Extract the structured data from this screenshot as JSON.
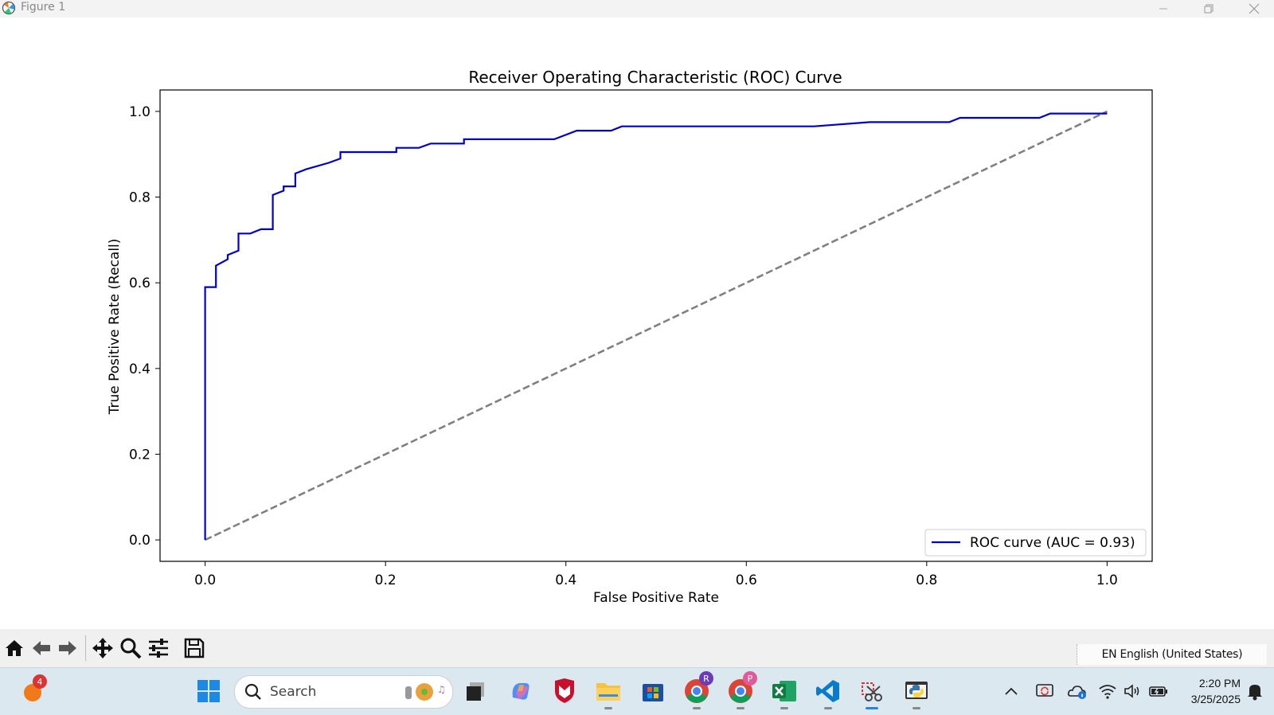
{
  "window": {
    "title": "Figure 1"
  },
  "chart_data": {
    "type": "line",
    "title": "Receiver Operating Characteristic (ROC) Curve",
    "xlabel": "False Positive Rate",
    "ylabel": "True Positive Rate (Recall)",
    "xlim": [
      -0.05,
      1.05
    ],
    "ylim": [
      -0.05,
      1.05
    ],
    "xticks": [
      "0.0",
      "0.2",
      "0.4",
      "0.6",
      "0.8",
      "1.0"
    ],
    "yticks": [
      "0.0",
      "0.2",
      "0.4",
      "0.6",
      "0.8",
      "1.0"
    ],
    "grid": false,
    "legend_position": "lower-right",
    "series": [
      {
        "name": "ROC curve (AUC = 0.93)",
        "color": "#0000cd",
        "style": "solid",
        "x": [
          0.0,
          0.0,
          0.012,
          0.012,
          0.025,
          0.025,
          0.037,
          0.037,
          0.05,
          0.062,
          0.075,
          0.075,
          0.087,
          0.087,
          0.1,
          0.1,
          0.112,
          0.137,
          0.15,
          0.15,
          0.212,
          0.212,
          0.237,
          0.25,
          0.287,
          0.287,
          0.387,
          0.412,
          0.45,
          0.462,
          0.675,
          0.737,
          0.825,
          0.837,
          0.925,
          0.937,
          1.0
        ],
        "y": [
          0.0,
          0.59,
          0.59,
          0.64,
          0.655,
          0.665,
          0.675,
          0.715,
          0.715,
          0.725,
          0.725,
          0.805,
          0.815,
          0.825,
          0.825,
          0.855,
          0.865,
          0.88,
          0.89,
          0.905,
          0.905,
          0.915,
          0.915,
          0.925,
          0.925,
          0.935,
          0.935,
          0.955,
          0.955,
          0.965,
          0.965,
          0.975,
          0.975,
          0.985,
          0.985,
          0.995,
          0.995
        ]
      },
      {
        "name": "",
        "color": "#808080",
        "style": "dashed",
        "x": [
          0,
          1
        ],
        "y": [
          0,
          1
        ]
      }
    ]
  },
  "toolbar": {
    "buttons": [
      "home-icon",
      "back-icon",
      "forward-icon",
      "pan-icon",
      "zoom-icon",
      "configure-icon",
      "save-icon"
    ]
  },
  "language_tooltip": "EN English (United States)",
  "taskbar": {
    "search_placeholder": "Search",
    "notification_count": "4",
    "chrome_profile_1": "R",
    "chrome_profile_2": "P",
    "time": "2:20 PM",
    "date": "3/25/2025"
  }
}
